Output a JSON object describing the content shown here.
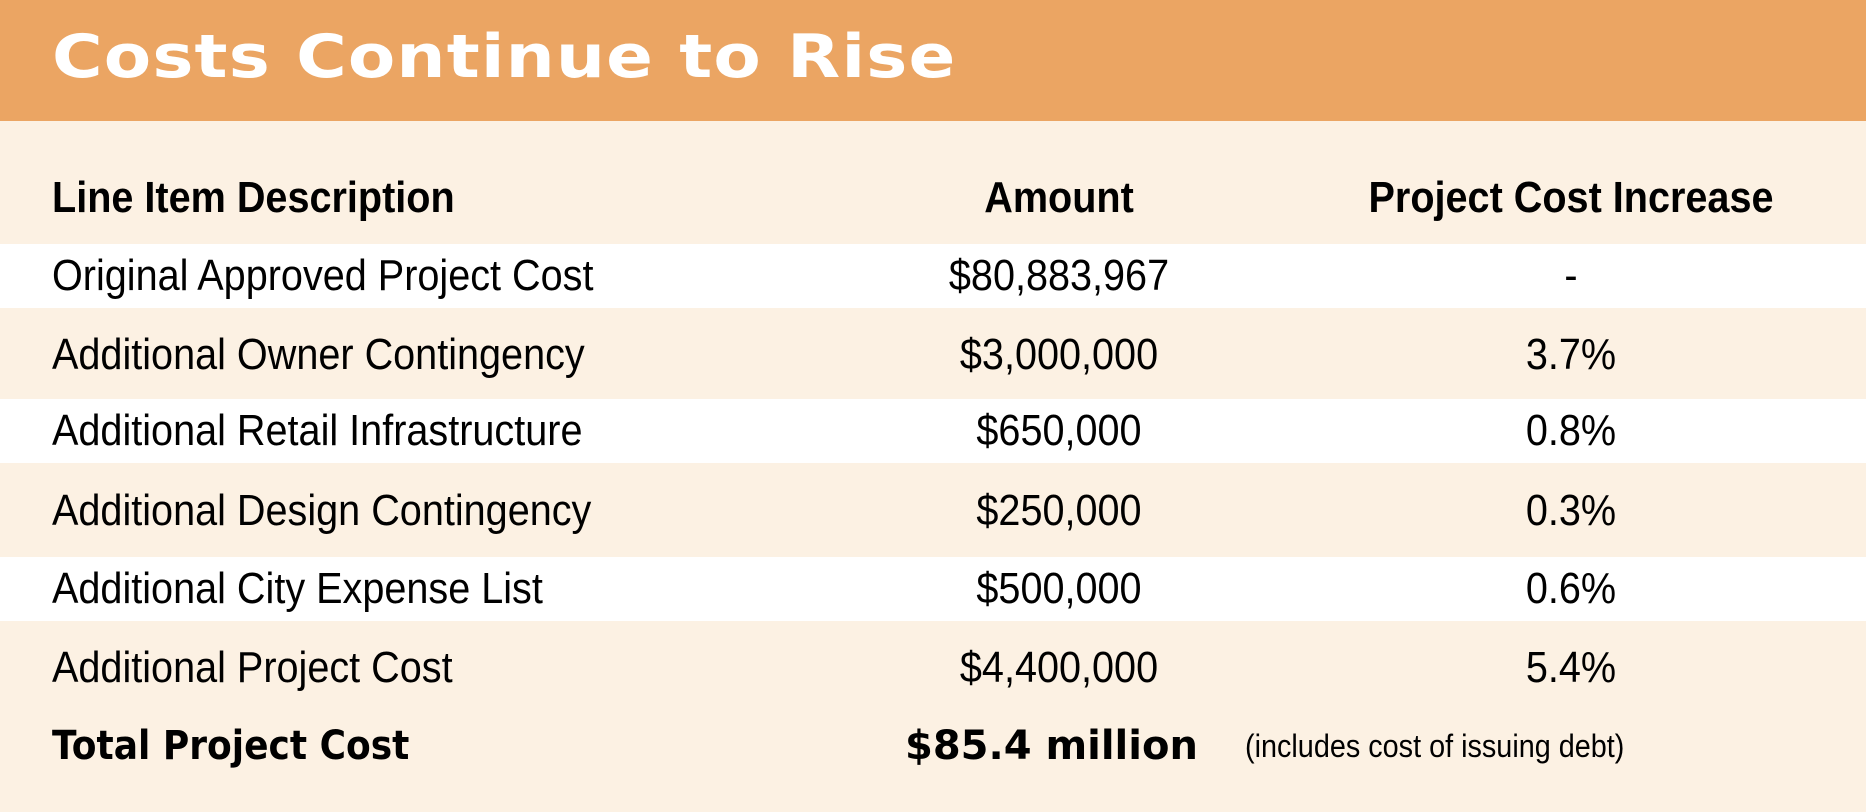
{
  "title": "Costs Continue to Rise",
  "colors": {
    "banner": "#EBA563",
    "background": "#FCF1E3",
    "stripe": "#FFFFFF"
  },
  "columns": [
    "Line Item Description",
    "Amount",
    "Project Cost Increase"
  ],
  "rows": [
    {
      "description": "Original Approved Project Cost",
      "amount": "$80,883,967",
      "increase": "-"
    },
    {
      "description": "Additional Owner Contingency",
      "amount": "$3,000,000",
      "increase": "3.7%"
    },
    {
      "description": "Additional Retail Infrastructure",
      "amount": "$650,000",
      "increase": "0.8%"
    },
    {
      "description": "Additional Design Contingency",
      "amount": "$250,000",
      "increase": "0.3%"
    },
    {
      "description": "Additional City Expense List",
      "amount": "$500,000",
      "increase": "0.6%"
    },
    {
      "description": "Additional Project Cost",
      "amount": "$4,400,000",
      "increase": "5.4%"
    }
  ],
  "total": {
    "label": "Total Project Cost",
    "amount": "$85.4 million",
    "note": "(includes cost of issuing debt)"
  }
}
